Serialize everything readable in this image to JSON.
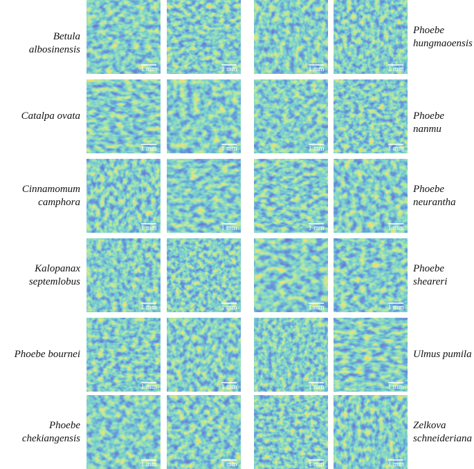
{
  "rows": [
    {
      "left_label": [
        "Betula albosinensis"
      ],
      "right_label": [
        "Phoebe",
        "hungmaoensis"
      ],
      "scale_labels": [
        "1 mm",
        "1 mm",
        "1 mm",
        "1 mm"
      ]
    },
    {
      "left_label": [
        "Catalpa ovata"
      ],
      "right_label": [
        "Phoebe nanmu"
      ],
      "scale_labels": [
        "1 mm",
        "1 mm",
        "1 mm",
        "1 mm"
      ]
    },
    {
      "left_label": [
        "Cinnamomum",
        "camphora"
      ],
      "right_label": [
        "Phoebe",
        "neurantha"
      ],
      "scale_labels": [
        "1 mm",
        "1 mm",
        "1 mm",
        "1 mm"
      ]
    },
    {
      "left_label": [
        "Kalopanax",
        "septemlobus"
      ],
      "right_label": [
        "Phoebe",
        "sheareri"
      ],
      "scale_labels": [
        "1 mm",
        "1 mm",
        "1 mm",
        "1 mm"
      ]
    },
    {
      "left_label": [
        "Phoebe bournei"
      ],
      "right_label": [
        "Ulmus pumila"
      ],
      "scale_labels": [
        "1 mm",
        "1 mm",
        "1 mm",
        "1 mm"
      ]
    },
    {
      "left_label": [
        "Phoebe",
        "chekiangensis"
      ],
      "right_label": [
        "Zelkova",
        "schneideriana"
      ],
      "scale_labels": [
        "1 mm",
        "1 mm",
        "1 mm",
        "1 mm"
      ]
    }
  ]
}
